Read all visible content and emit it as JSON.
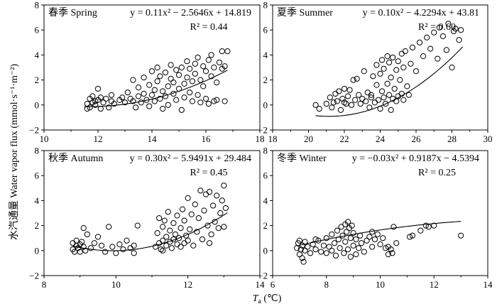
{
  "figure": {
    "ylabel": "水汽通量 Water vapor flux (mmol·s⁻¹·m⁻²)",
    "xlabel_main": "T",
    "xlabel_sub": "a",
    "xlabel_unit": " (℃)"
  },
  "chart_data": [
    {
      "type": "scatter",
      "title": "春季 Spring",
      "equation": "y = 0.11x² − 2.5646x + 14.819",
      "r2": "R² = 0.44",
      "xlim": [
        10,
        18
      ],
      "ylim": [
        -2,
        8
      ],
      "xticks": [
        10,
        12,
        14,
        16,
        18
      ],
      "yticks": [
        -2,
        0,
        2,
        4,
        6,
        8
      ],
      "fit": {
        "a": 0.11,
        "b": -2.5646,
        "c": 14.819,
        "x_range": [
          11.5,
          16.8
        ]
      },
      "points": [
        [
          11.6,
          -0.3
        ],
        [
          11.6,
          0.1
        ],
        [
          11.7,
          0.5
        ],
        [
          11.7,
          -0.2
        ],
        [
          11.8,
          0.2
        ],
        [
          11.8,
          0.7
        ],
        [
          11.9,
          0.0
        ],
        [
          11.9,
          0.3
        ],
        [
          12.0,
          1.3
        ],
        [
          12.0,
          0.4
        ],
        [
          12.1,
          0.6
        ],
        [
          12.1,
          -0.3
        ],
        [
          12.2,
          0.2
        ],
        [
          12.3,
          0.5
        ],
        [
          12.4,
          -0.2
        ],
        [
          12.5,
          0.8
        ],
        [
          12.5,
          0.3
        ],
        [
          12.6,
          0.1
        ],
        [
          12.8,
          0.4
        ],
        [
          12.9,
          0.6
        ],
        [
          13.0,
          0.2
        ],
        [
          13.1,
          1.0
        ],
        [
          13.2,
          0.5
        ],
        [
          13.3,
          2.0
        ],
        [
          13.3,
          0.3
        ],
        [
          13.4,
          -0.2
        ],
        [
          13.5,
          0.7
        ],
        [
          13.5,
          1.4
        ],
        [
          13.6,
          0.2
        ],
        [
          13.7,
          2.2
        ],
        [
          13.7,
          0.9
        ],
        [
          13.8,
          0.4
        ],
        [
          13.9,
          1.6
        ],
        [
          13.9,
          -0.1
        ],
        [
          14.0,
          0.8
        ],
        [
          14.0,
          2.7
        ],
        [
          14.1,
          1.2
        ],
        [
          14.1,
          0.3
        ],
        [
          14.2,
          3.0
        ],
        [
          14.2,
          1.9
        ],
        [
          14.3,
          0.5
        ],
        [
          14.3,
          2.3
        ],
        [
          14.4,
          1.1
        ],
        [
          14.4,
          -0.3
        ],
        [
          14.5,
          2.6
        ],
        [
          14.5,
          0.7
        ],
        [
          14.6,
          1.5
        ],
        [
          14.6,
          0.0
        ],
        [
          14.7,
          2.1
        ],
        [
          14.7,
          3.2
        ],
        [
          14.8,
          0.9
        ],
        [
          14.8,
          1.8
        ],
        [
          14.9,
          2.8
        ],
        [
          14.9,
          0.4
        ],
        [
          15.0,
          1.3
        ],
        [
          15.0,
          2.4
        ],
        [
          15.1,
          -0.4
        ],
        [
          15.1,
          3.0
        ],
        [
          15.2,
          1.7
        ],
        [
          15.2,
          0.6
        ],
        [
          15.3,
          2.2
        ],
        [
          15.3,
          3.5
        ],
        [
          15.4,
          1.0
        ],
        [
          15.4,
          2.9
        ],
        [
          15.5,
          0.3
        ],
        [
          15.5,
          1.9
        ],
        [
          15.6,
          3.3
        ],
        [
          15.6,
          2.5
        ],
        [
          15.7,
          0.8
        ],
        [
          15.7,
          3.8
        ],
        [
          15.8,
          2.0
        ],
        [
          15.8,
          0.2
        ],
        [
          15.9,
          3.1
        ],
        [
          15.9,
          1.5
        ],
        [
          16.0,
          2.7
        ],
        [
          16.0,
          0.5
        ],
        [
          16.1,
          3.6
        ],
        [
          16.1,
          0.1
        ],
        [
          16.2,
          2.3
        ],
        [
          16.2,
          4.0
        ],
        [
          16.3,
          3.0
        ],
        [
          16.4,
          1.8
        ],
        [
          16.4,
          0.4
        ],
        [
          16.5,
          3.4
        ],
        [
          16.6,
          4.3
        ],
        [
          16.6,
          2.9
        ],
        [
          16.7,
          3.1
        ],
        [
          16.8,
          4.3
        ],
        [
          16.7,
          0.3
        ],
        [
          16.3,
          0.3
        ]
      ]
    },
    {
      "type": "scatter",
      "title": "夏季 Summer",
      "equation": "y = 0.10x² − 4.2294x + 43.81",
      "r2": "R² = 0.60",
      "xlim": [
        18,
        30
      ],
      "ylim": [
        -2,
        8
      ],
      "xticks": [
        18,
        20,
        22,
        24,
        26,
        28,
        30
      ],
      "yticks": [
        -2,
        0,
        2,
        4,
        6,
        8
      ],
      "fit": {
        "a": 0.1,
        "b": -4.2294,
        "c": 43.81,
        "x_range": [
          20.4,
          28.6
        ]
      },
      "points": [
        [
          20.4,
          0.0
        ],
        [
          20.6,
          -0.3
        ],
        [
          21.0,
          0.1
        ],
        [
          21.2,
          0.6
        ],
        [
          21.3,
          -0.2
        ],
        [
          21.5,
          0.9
        ],
        [
          21.6,
          0.3
        ],
        [
          21.7,
          1.1
        ],
        [
          21.8,
          -0.4
        ],
        [
          21.9,
          0.5
        ],
        [
          22.0,
          1.3
        ],
        [
          22.0,
          0.2
        ],
        [
          22.2,
          0.7
        ],
        [
          22.3,
          1.2
        ],
        [
          22.4,
          0.0
        ],
        [
          22.5,
          2.0
        ],
        [
          22.6,
          0.4
        ],
        [
          22.7,
          2.1
        ],
        [
          22.8,
          0.8
        ],
        [
          22.9,
          0.1
        ],
        [
          23.0,
          0.5
        ],
        [
          23.1,
          2.7
        ],
        [
          23.2,
          0.3
        ],
        [
          23.3,
          1.0
        ],
        [
          23.4,
          -0.2
        ],
        [
          23.5,
          0.6
        ],
        [
          23.6,
          2.3
        ],
        [
          23.7,
          0.2
        ],
        [
          23.8,
          1.6
        ],
        [
          23.8,
          3.2
        ],
        [
          23.9,
          0.4
        ],
        [
          24.0,
          2.5
        ],
        [
          24.0,
          -0.3
        ],
        [
          24.1,
          3.6
        ],
        [
          24.1,
          1.1
        ],
        [
          24.2,
          0.6
        ],
        [
          24.2,
          2.9
        ],
        [
          24.3,
          0.1
        ],
        [
          24.4,
          3.9
        ],
        [
          24.4,
          1.7
        ],
        [
          24.5,
          0.8
        ],
        [
          24.5,
          3.4
        ],
        [
          24.6,
          -0.4
        ],
        [
          24.6,
          2.2
        ],
        [
          24.7,
          0.5
        ],
        [
          24.7,
          3.8
        ],
        [
          24.8,
          1.3
        ],
        [
          24.9,
          2.8
        ],
        [
          24.9,
          0.3
        ],
        [
          25.0,
          3.5
        ],
        [
          25.0,
          0.7
        ],
        [
          25.1,
          2.0
        ],
        [
          25.2,
          4.1
        ],
        [
          25.2,
          0.9
        ],
        [
          25.3,
          3.0
        ],
        [
          25.3,
          0.4
        ],
        [
          25.4,
          4.3
        ],
        [
          25.5,
          1.5
        ],
        [
          25.6,
          0.8
        ],
        [
          25.7,
          3.3
        ],
        [
          25.8,
          4.6
        ],
        [
          26.0,
          2.7
        ],
        [
          26.2,
          5.0
        ],
        [
          26.4,
          3.9
        ],
        [
          26.6,
          5.4
        ],
        [
          26.8,
          4.5
        ],
        [
          27.0,
          5.8
        ],
        [
          27.2,
          3.7
        ],
        [
          27.3,
          6.2
        ],
        [
          27.5,
          5.5
        ],
        [
          27.7,
          4.4
        ],
        [
          27.8,
          6.5
        ],
        [
          28.0,
          3.0
        ],
        [
          28.1,
          5.9
        ],
        [
          28.2,
          6.1
        ],
        [
          28.4,
          5.2
        ],
        [
          28.5,
          6.0
        ],
        [
          21.4,
          0.2
        ],
        [
          22.1,
          0.1
        ],
        [
          23.5,
          0.8
        ]
      ]
    },
    {
      "type": "scatter",
      "title": "秋季 Autumn",
      "equation": "y = 0.30x² − 5.9491x + 29.484",
      "r2": "R² = 0.45",
      "xlim": [
        8,
        14
      ],
      "ylim": [
        -2,
        8
      ],
      "xticks": [
        8,
        10,
        12,
        14
      ],
      "yticks": [
        -2,
        0,
        2,
        4,
        6,
        8
      ],
      "fit": {
        "a": 0.3,
        "b": -5.9491,
        "c": 29.484,
        "x_range": [
          8.8,
          13.1
        ]
      },
      "points": [
        [
          8.8,
          0.1
        ],
        [
          8.8,
          0.6
        ],
        [
          8.85,
          -0.1
        ],
        [
          8.9,
          0.4
        ],
        [
          8.9,
          0.8
        ],
        [
          8.95,
          0.2
        ],
        [
          9.0,
          0.5
        ],
        [
          9.0,
          -0.1
        ],
        [
          9.05,
          0.7
        ],
        [
          9.1,
          1.8
        ],
        [
          9.1,
          0.3
        ],
        [
          9.15,
          0.0
        ],
        [
          9.2,
          1.3
        ],
        [
          9.3,
          0.2
        ],
        [
          9.4,
          0.6
        ],
        [
          9.5,
          1.1
        ],
        [
          9.6,
          0.4
        ],
        [
          9.7,
          -0.1
        ],
        [
          9.8,
          1.9
        ],
        [
          9.9,
          0.3
        ],
        [
          10.0,
          -0.2
        ],
        [
          10.1,
          0.5
        ],
        [
          10.2,
          0.1
        ],
        [
          10.3,
          0.8
        ],
        [
          10.4,
          0.2
        ],
        [
          10.5,
          0.4
        ],
        [
          10.6,
          2.0
        ],
        [
          10.5,
          -0.2
        ],
        [
          11.1,
          0.3
        ],
        [
          11.15,
          1.4
        ],
        [
          11.2,
          2.6
        ],
        [
          11.2,
          0.6
        ],
        [
          11.25,
          0.1
        ],
        [
          11.3,
          1.9
        ],
        [
          11.3,
          0.8
        ],
        [
          11.35,
          2.4
        ],
        [
          11.4,
          0.4
        ],
        [
          11.4,
          1.1
        ],
        [
          11.45,
          3.1
        ],
        [
          11.5,
          0.7
        ],
        [
          11.5,
          1.6
        ],
        [
          11.55,
          0.2
        ],
        [
          11.6,
          2.2
        ],
        [
          11.6,
          0.9
        ],
        [
          11.65,
          1.3
        ],
        [
          11.7,
          0.5
        ],
        [
          11.7,
          2.8
        ],
        [
          11.75,
          1.0
        ],
        [
          11.8,
          0.3
        ],
        [
          11.8,
          1.8
        ],
        [
          11.85,
          3.3
        ],
        [
          11.9,
          0.6
        ],
        [
          11.9,
          2.4
        ],
        [
          11.95,
          1.2
        ],
        [
          12.0,
          4.2
        ],
        [
          12.0,
          0.8
        ],
        [
          12.05,
          1.7
        ],
        [
          12.1,
          2.9
        ],
        [
          12.15,
          0.4
        ],
        [
          12.2,
          3.7
        ],
        [
          12.25,
          1.5
        ],
        [
          12.3,
          2.6
        ],
        [
          12.35,
          4.8
        ],
        [
          12.4,
          0.9
        ],
        [
          12.45,
          3.2
        ],
        [
          12.5,
          4.5
        ],
        [
          12.55,
          2.0
        ],
        [
          12.6,
          4.7
        ],
        [
          12.65,
          1.3
        ],
        [
          12.7,
          3.6
        ],
        [
          12.75,
          2.3
        ],
        [
          12.8,
          4.4
        ],
        [
          12.85,
          1.8
        ],
        [
          12.9,
          3.0
        ],
        [
          12.95,
          4.0
        ],
        [
          13.0,
          5.2
        ],
        [
          13.0,
          1.9
        ],
        [
          13.05,
          3.4
        ],
        [
          12.6,
          0.6
        ],
        [
          11.3,
          0.0
        ]
      ]
    },
    {
      "type": "scatter",
      "title": "冬季 Winter",
      "equation": "y = −0.03x² + 0.9187x − 4.5394",
      "r2": "R² = 0.25",
      "xlim": [
        6,
        14
      ],
      "ylim": [
        -2,
        8
      ],
      "xticks": [
        6,
        8,
        10,
        12,
        14
      ],
      "yticks": [
        -2,
        0,
        2,
        4,
        6,
        8
      ],
      "fit": {
        "a": -0.03,
        "b": 0.9187,
        "c": -4.5394,
        "x_range": [
          6.9,
          13.0
        ]
      },
      "points": [
        [
          6.9,
          0.2
        ],
        [
          6.95,
          0.6
        ],
        [
          7.0,
          -0.3
        ],
        [
          7.0,
          0.8
        ],
        [
          7.05,
          0.1
        ],
        [
          7.1,
          0.4
        ],
        [
          7.1,
          -0.6
        ],
        [
          7.15,
          -0.9
        ],
        [
          7.2,
          0.7
        ],
        [
          7.2,
          0.0
        ],
        [
          7.3,
          0.3
        ],
        [
          7.4,
          -0.2
        ],
        [
          7.5,
          0.5
        ],
        [
          7.6,
          0.1
        ],
        [
          7.7,
          0.8
        ],
        [
          7.8,
          -0.1
        ],
        [
          7.9,
          0.4
        ],
        [
          8.0,
          1.0
        ],
        [
          8.1,
          0.3
        ],
        [
          8.2,
          1.3
        ],
        [
          8.3,
          0.6
        ],
        [
          8.35,
          -0.4
        ],
        [
          8.4,
          1.6
        ],
        [
          8.45,
          0.9
        ],
        [
          8.5,
          0.2
        ],
        [
          8.55,
          1.9
        ],
        [
          8.6,
          1.2
        ],
        [
          8.65,
          -0.2
        ],
        [
          8.7,
          2.1
        ],
        [
          8.7,
          0.7
        ],
        [
          8.75,
          1.5
        ],
        [
          8.8,
          2.3
        ],
        [
          8.8,
          0.1
        ],
        [
          8.85,
          1.8
        ],
        [
          8.9,
          -0.5
        ],
        [
          8.9,
          1.0
        ],
        [
          8.95,
          2.0
        ],
        [
          9.0,
          0.4
        ],
        [
          9.0,
          1.4
        ],
        [
          9.1,
          -0.3
        ],
        [
          9.1,
          0.9
        ],
        [
          9.2,
          0.2
        ],
        [
          9.25,
          1.2
        ],
        [
          9.3,
          0.6
        ],
        [
          9.4,
          -0.1
        ],
        [
          9.5,
          0.8
        ],
        [
          9.6,
          1.1
        ],
        [
          9.7,
          0.3
        ],
        [
          9.8,
          0.9
        ],
        [
          9.9,
          1.3
        ],
        [
          10.0,
          0.5
        ],
        [
          10.1,
          1.0
        ],
        [
          10.2,
          0.2
        ],
        [
          10.3,
          -0.3
        ],
        [
          10.4,
          0.1
        ],
        [
          10.5,
          1.9
        ],
        [
          10.6,
          0.6
        ],
        [
          11.1,
          1.1
        ],
        [
          11.2,
          1.2
        ],
        [
          11.5,
          1.6
        ],
        [
          11.7,
          2.0
        ],
        [
          11.8,
          1.9
        ],
        [
          12.0,
          2.0
        ],
        [
          13.0,
          1.2
        ],
        [
          8.2,
          0.0
        ],
        [
          7.6,
          0.9
        ],
        [
          9.7,
          1.5
        ],
        [
          8.0,
          -0.2
        ],
        [
          10.45,
          -0.2
        ],
        [
          10.3,
          0.3
        ]
      ]
    }
  ]
}
